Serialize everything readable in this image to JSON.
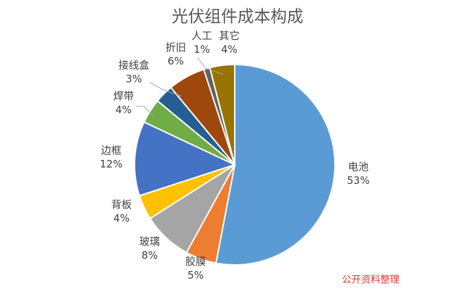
{
  "chart_data": {
    "type": "pie",
    "title": "光伏组件成本构成",
    "slices": [
      {
        "name": "电池",
        "value": 53,
        "label": "53%",
        "color": "#5b9bd5"
      },
      {
        "name": "胶膜",
        "value": 5,
        "label": "5%",
        "color": "#ed7d31"
      },
      {
        "name": "玻璃",
        "value": 8,
        "label": "8%",
        "color": "#a5a5a5"
      },
      {
        "name": "背板",
        "value": 4,
        "label": "4%",
        "color": "#ffc000"
      },
      {
        "name": "边框",
        "value": 12,
        "label": "12%",
        "color": "#4472c4"
      },
      {
        "name": "焊带",
        "value": 4,
        "label": "4%",
        "color": "#70ad47"
      },
      {
        "name": "接线盒",
        "value": 3,
        "label": "3%",
        "color": "#255e91"
      },
      {
        "name": "折旧",
        "value": 6,
        "label": "6%",
        "color": "#9e480e"
      },
      {
        "name": "人工",
        "value": 1,
        "label": "1%",
        "color": "#636363"
      },
      {
        "name": "其它",
        "value": 4,
        "label": "4%",
        "color": "#997300"
      }
    ],
    "legend": "none"
  },
  "annotation": "公开资料整理"
}
